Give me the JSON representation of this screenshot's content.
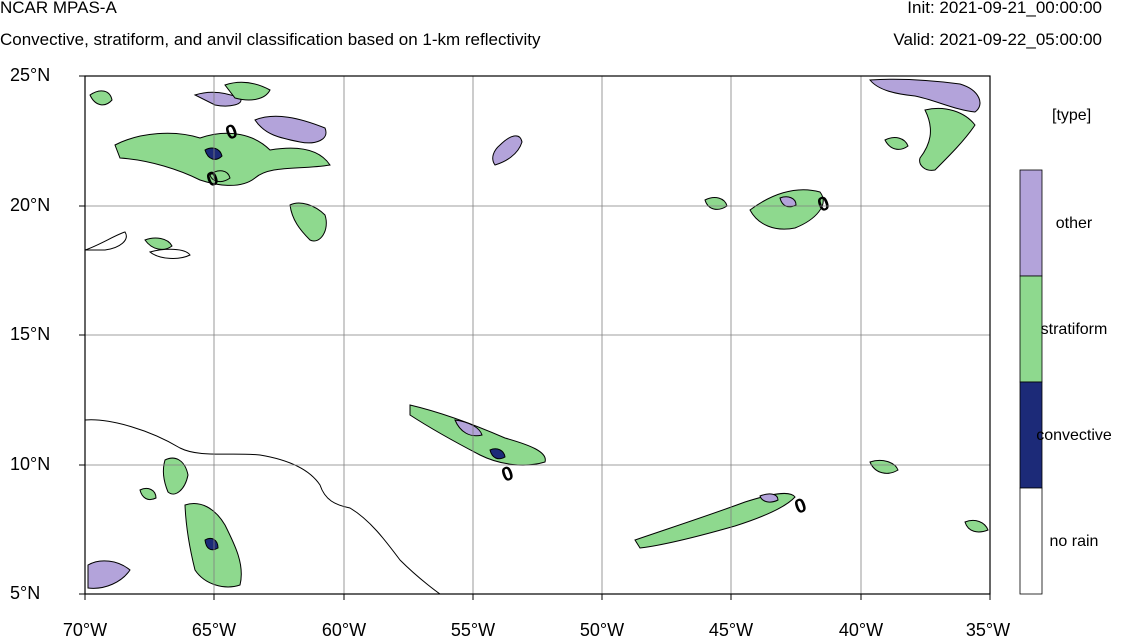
{
  "header": {
    "title": "NCAR MPAS-A",
    "subtitle": "Convective, stratiform, and anvil classification based on 1-km reflectivity",
    "init": "Init: 2021-09-21_00:00:00",
    "valid": "Valid: 2021-09-22_05:00:00"
  },
  "map": {
    "lat_labels": [
      "25°N",
      "20°N",
      "15°N",
      "10°N",
      "5°N"
    ],
    "lon_labels": [
      "70°W",
      "65°W",
      "60°W",
      "55°W",
      "50°W",
      "45°W",
      "40°W",
      "35°W"
    ],
    "contour_label": "0"
  },
  "legend": {
    "title": "[type]",
    "items": [
      {
        "label": "other",
        "color": "#b3a3da"
      },
      {
        "label": "stratiform",
        "color": "#8ed98e"
      },
      {
        "label": "convective",
        "color": "#1c2a78"
      },
      {
        "label": "no rain",
        "color": "#ffffff"
      }
    ]
  }
}
